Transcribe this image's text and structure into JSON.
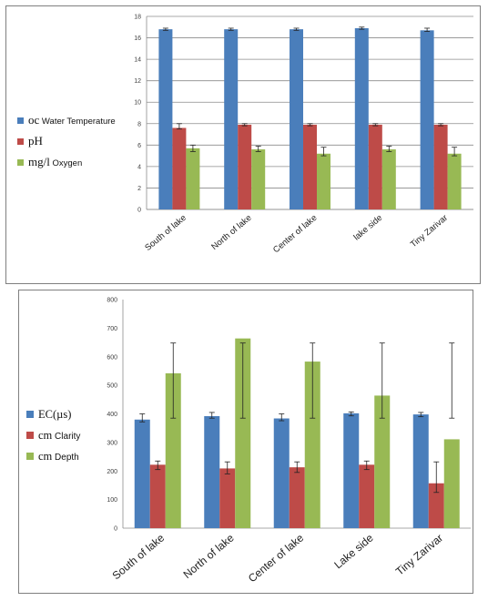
{
  "chart_data": [
    {
      "type": "bar",
      "categories": [
        "South of lake",
        "North of lake",
        "Center of lake",
        "lake side",
        "Tiny Zarivar"
      ],
      "ylim": [
        0,
        18
      ],
      "yticks": [
        0,
        2,
        4,
        6,
        8,
        10,
        12,
        14,
        16,
        18
      ],
      "grid": true,
      "legend_position": "left",
      "series": [
        {
          "legend_unit": "oc",
          "legend_name": "Water Temperature",
          "color": "#4a7ebb",
          "values": [
            16.8,
            16.8,
            16.8,
            16.9,
            16.7
          ],
          "error_low": [
            16.7,
            16.7,
            16.7,
            16.8,
            16.6
          ],
          "error_high": [
            16.9,
            16.9,
            16.9,
            17.0,
            16.9
          ]
        },
        {
          "legend_unit": "pH",
          "legend_name": "",
          "color": "#be4b48",
          "values": [
            7.6,
            7.9,
            7.9,
            7.9,
            7.9
          ],
          "error_low": [
            7.5,
            7.8,
            7.8,
            7.8,
            7.8
          ],
          "error_high": [
            8.0,
            8.0,
            8.0,
            8.0,
            8.0
          ]
        },
        {
          "legend_unit": "mg/l",
          "legend_name": "Oxygen",
          "color": "#98b954",
          "values": [
            5.7,
            5.6,
            5.2,
            5.6,
            5.2
          ],
          "error_low": [
            5.4,
            5.4,
            5.0,
            5.4,
            5.0
          ],
          "error_high": [
            6.0,
            5.9,
            5.8,
            5.9,
            5.8
          ]
        }
      ]
    },
    {
      "type": "bar",
      "categories": [
        "South of lake",
        "North of lake",
        "Center of lake",
        "Lake side",
        "Tiny Zarivar"
      ],
      "ylim": [
        0,
        800
      ],
      "yticks": [
        0,
        100,
        200,
        300,
        400,
        500,
        600,
        700,
        800
      ],
      "grid": false,
      "legend_position": "left",
      "series": [
        {
          "legend_unit": "EC(µs)",
          "legend_name": "",
          "color": "#4a7ebb",
          "values": [
            380,
            392,
            384,
            402,
            398
          ],
          "error_low": [
            372,
            385,
            376,
            393,
            390
          ],
          "error_high": [
            400,
            405,
            400,
            407,
            405
          ]
        },
        {
          "legend_unit": "cm",
          "legend_name": "Clarity",
          "color": "#be4b48",
          "values": [
            222,
            209,
            213,
            222,
            157
          ],
          "error_low": [
            205,
            190,
            195,
            205,
            125
          ],
          "error_high": [
            235,
            232,
            232,
            235,
            232
          ]
        },
        {
          "legend_unit": "cm",
          "legend_name": "Depth",
          "color": "#98b954",
          "values": [
            542,
            664,
            583,
            464,
            311
          ],
          "error_low": [
            385,
            385,
            385,
            385,
            385
          ],
          "error_high": [
            648,
            648,
            648,
            648,
            648
          ]
        }
      ]
    }
  ]
}
